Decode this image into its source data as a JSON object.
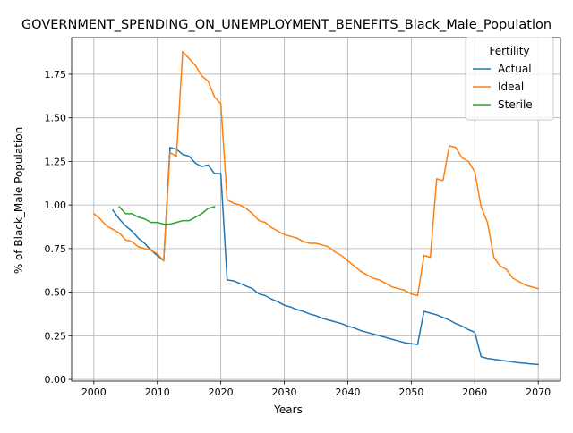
{
  "chart_data": {
    "type": "line",
    "title": "GOVERNMENT_SPENDING_ON_UNEMPLOYMENT_BENEFITS_Black_Male_Population",
    "xlabel": "Years",
    "ylabel": "% of Black_Male Population",
    "xlim": [
      1996.5,
      2073.5
    ],
    "ylim": [
      -0.01,
      1.96
    ],
    "x_ticks": [
      2000,
      2010,
      2020,
      2030,
      2040,
      2050,
      2060,
      2070
    ],
    "x_tick_labels": [
      "2000",
      "2010",
      "2020",
      "2030",
      "2040",
      "2050",
      "2060",
      "2070"
    ],
    "y_ticks": [
      0.0,
      0.25,
      0.5,
      0.75,
      1.0,
      1.25,
      1.5,
      1.75
    ],
    "y_tick_labels": [
      "0.00",
      "0.25",
      "0.50",
      "0.75",
      "1.00",
      "1.25",
      "1.50",
      "1.75"
    ],
    "grid": true,
    "legend": {
      "title": "Fertility",
      "placement": "top-right"
    },
    "series": [
      {
        "name": "Actual",
        "color": "#1f77b4",
        "x": [
          2003,
          2004,
          2005,
          2006,
          2007,
          2008,
          2009,
          2010,
          2011,
          2012,
          2013,
          2014,
          2015,
          2016,
          2017,
          2018,
          2019,
          2020,
          2021,
          2022,
          2023,
          2024,
          2025,
          2026,
          2027,
          2028,
          2029,
          2030,
          2031,
          2032,
          2033,
          2034,
          2035,
          2036,
          2037,
          2038,
          2039,
          2040,
          2041,
          2042,
          2043,
          2044,
          2045,
          2046,
          2047,
          2048,
          2049,
          2050,
          2051,
          2052,
          2053,
          2054,
          2055,
          2056,
          2057,
          2058,
          2059,
          2060,
          2061,
          2062,
          2063,
          2064,
          2065,
          2066,
          2067,
          2068,
          2069,
          2070
        ],
        "y": [
          0.97,
          0.92,
          0.88,
          0.85,
          0.81,
          0.78,
          0.74,
          0.71,
          0.68,
          1.33,
          1.32,
          1.29,
          1.28,
          1.24,
          1.22,
          1.23,
          1.18,
          1.18,
          0.57,
          0.565,
          0.55,
          0.535,
          0.52,
          0.49,
          0.48,
          0.46,
          0.445,
          0.425,
          0.415,
          0.4,
          0.39,
          0.375,
          0.365,
          0.35,
          0.34,
          0.33,
          0.32,
          0.305,
          0.295,
          0.28,
          0.27,
          0.26,
          0.25,
          0.24,
          0.23,
          0.22,
          0.21,
          0.205,
          0.2,
          0.39,
          0.38,
          0.37,
          0.355,
          0.34,
          0.32,
          0.305,
          0.285,
          0.27,
          0.13,
          0.12,
          0.115,
          0.11,
          0.105,
          0.1,
          0.095,
          0.092,
          0.088,
          0.085
        ]
      },
      {
        "name": "Ideal",
        "color": "#ff7f0e",
        "x": [
          2000,
          2001,
          2002,
          2003,
          2004,
          2005,
          2006,
          2007,
          2008,
          2009,
          2010,
          2011,
          2012,
          2013,
          2014,
          2015,
          2016,
          2017,
          2018,
          2019,
          2020,
          2021,
          2022,
          2023,
          2024,
          2025,
          2026,
          2027,
          2028,
          2029,
          2030,
          2031,
          2032,
          2033,
          2034,
          2035,
          2036,
          2037,
          2038,
          2039,
          2040,
          2041,
          2042,
          2043,
          2044,
          2045,
          2046,
          2047,
          2048,
          2049,
          2050,
          2051,
          2052,
          2053,
          2054,
          2055,
          2056,
          2057,
          2058,
          2059,
          2060,
          2061,
          2062,
          2063,
          2064,
          2065,
          2066,
          2067,
          2068,
          2069,
          2070
        ],
        "y": [
          0.95,
          0.92,
          0.88,
          0.86,
          0.84,
          0.8,
          0.79,
          0.76,
          0.75,
          0.74,
          0.72,
          0.68,
          1.3,
          1.28,
          1.88,
          1.84,
          1.8,
          1.74,
          1.71,
          1.62,
          1.58,
          1.03,
          1.01,
          1.0,
          0.98,
          0.95,
          0.91,
          0.9,
          0.87,
          0.85,
          0.83,
          0.82,
          0.81,
          0.79,
          0.78,
          0.78,
          0.77,
          0.76,
          0.73,
          0.71,
          0.68,
          0.65,
          0.62,
          0.6,
          0.58,
          0.57,
          0.55,
          0.53,
          0.52,
          0.51,
          0.49,
          0.48,
          0.71,
          0.7,
          1.15,
          1.14,
          1.34,
          1.33,
          1.27,
          1.25,
          1.19,
          0.99,
          0.9,
          0.7,
          0.65,
          0.63,
          0.58,
          0.56,
          0.54,
          0.53,
          0.52
        ]
      },
      {
        "name": "Sterile",
        "color": "#2ca02c",
        "x": [
          2004,
          2005,
          2006,
          2007,
          2008,
          2009,
          2010,
          2011,
          2012,
          2013,
          2014,
          2015,
          2016,
          2017,
          2018,
          2019
        ],
        "y": [
          0.99,
          0.95,
          0.95,
          0.93,
          0.92,
          0.9,
          0.9,
          0.89,
          0.89,
          0.9,
          0.91,
          0.91,
          0.93,
          0.95,
          0.98,
          0.99
        ]
      }
    ]
  }
}
